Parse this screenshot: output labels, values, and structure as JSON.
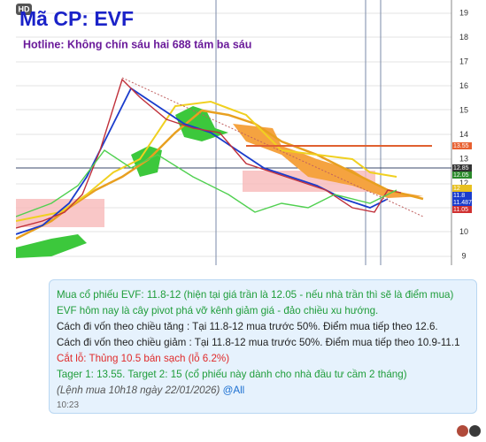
{
  "chart_image": {
    "badge": "HD",
    "title": "Mã CP: EVF",
    "hotline": "Hotline: Không chín sáu hai 688 tám ba sáu",
    "axis_labels": [
      "19",
      "18",
      "17",
      "16",
      "15",
      "14",
      "13",
      "12",
      "11",
      "10",
      "9"
    ],
    "price_tags": [
      "13.55",
      "12.85",
      "12.05",
      "12",
      "11.8",
      "11.4875",
      "11.05"
    ]
  },
  "message": {
    "lines": [
      "Mua cổ phiếu EVF: 11.8-12 (hiện tại giá trần là 12.05 - nếu nhà trần thì sẽ là điểm mua)",
      "EVF hôm nay là cây pivot phá vỡ kênh giảm giá - đảo chiều xu hướng.",
      "Cách đi vốn theo chiều tăng : Tại 11.8-12 mua trước 50%. Điểm mua tiếp theo 12.6.",
      "Cách đi vốn theo chiều giảm : Tại 11.8-12 mua trước 50%. Điểm mua tiếp theo 10.9-11.1",
      "Cắt lỗ: Thủng 10.5 bán sạch (lỗ 6.2%)",
      "Tager 1: 13.55. Target 2: 15 (cổ phiếu này dành cho nhà đầu tư cầm 2 tháng)"
    ],
    "note": "(Lệnh mua 10h18 ngày 22/01/2026)",
    "mention": "@All",
    "time": "10:23"
  }
}
